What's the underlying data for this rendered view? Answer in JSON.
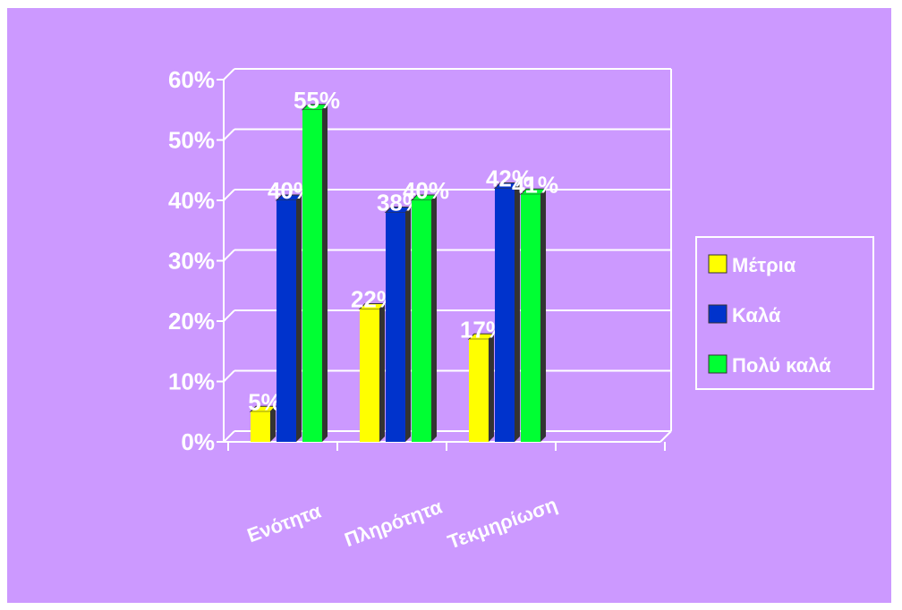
{
  "chart_data": {
    "type": "bar",
    "categories": [
      "Ενότητα",
      "Πληρότητα",
      "Τεκμηρίωση"
    ],
    "series": [
      {
        "name": "Μέτρια",
        "values": [
          5,
          22,
          17
        ],
        "labels": [
          "5%",
          "22%",
          "17%"
        ],
        "color": "#ffff00"
      },
      {
        "name": "Καλά",
        "values": [
          40,
          38,
          42
        ],
        "labels": [
          "40%",
          "38%",
          "42%"
        ],
        "color": "#0033cc"
      },
      {
        "name": "Πολύ καλά",
        "values": [
          55,
          40,
          41
        ],
        "labels": [
          "55%",
          "40%",
          "41%"
        ],
        "color": "#00ff33"
      }
    ],
    "yticks": [
      "0%",
      "10%",
      "20%",
      "30%",
      "40%",
      "50%",
      "60%"
    ],
    "ylim": [
      0,
      60
    ],
    "grid": true,
    "legend": "right",
    "colors": {
      "background": "#cc99ff",
      "plot_area": "#cc99ff",
      "gridline": "#ffffff",
      "axis": "#ffffff",
      "bar_side": "#333333",
      "text": "#ffffff"
    }
  }
}
